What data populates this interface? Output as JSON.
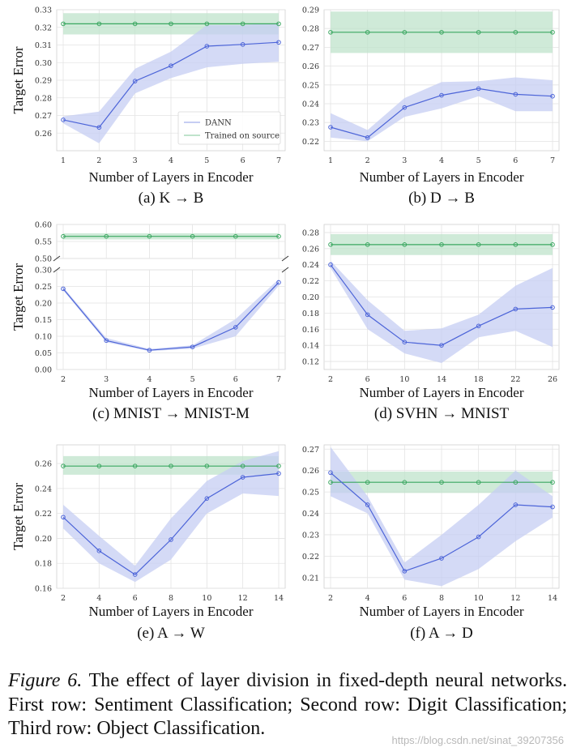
{
  "figure": {
    "caption_label": "Figure 6.",
    "caption_text": "The effect of layer division in fixed-depth neural networks. First row: Sentiment Classification; Second row: Digit Classification; Third row: Object Classification.",
    "watermark": "https://blog.csdn.net/sinat_39207356"
  },
  "colors": {
    "dann": "#4c64d8",
    "source": "#3aa760",
    "dann_band": "#c6cdf3",
    "source_band": "#bfe3cb",
    "grid": "#e3e3e3"
  },
  "chart_data": [
    {
      "type": "line",
      "panel": "a",
      "caption": "(a) K → B",
      "title": "",
      "xlabel": "Number of Layers in Encoder",
      "ylabel": "Target Error",
      "x": [
        1,
        2,
        3,
        4,
        5,
        6,
        7
      ],
      "xticks": [
        "1",
        "2",
        "3",
        "4",
        "5",
        "6",
        "7"
      ],
      "ylim": [
        0.25,
        0.33
      ],
      "yticks": [
        0.26,
        0.27,
        0.28,
        0.29,
        0.3,
        0.31,
        0.32,
        0.33
      ],
      "ytick_labels": [
        "0.26",
        "0.27",
        "0.28",
        "0.29",
        "0.30",
        "0.31",
        "0.32",
        "0.33"
      ],
      "legend": {
        "location": "lower-right",
        "entries": [
          "DANN",
          "Trained on source"
        ]
      },
      "series": [
        {
          "name": "DANN",
          "values": [
            0.2675,
            0.2632,
            0.2895,
            0.2982,
            0.3093,
            0.3103,
            0.3115
          ],
          "lower": [
            0.2655,
            0.2542,
            0.2825,
            0.2912,
            0.2973,
            0.2993,
            0.3005
          ],
          "upper": [
            0.2695,
            0.2722,
            0.2965,
            0.3062,
            0.3213,
            0.3213,
            0.3225
          ]
        },
        {
          "name": "Trained on source",
          "values": [
            0.322,
            0.322,
            0.322,
            0.322,
            0.322,
            0.322,
            0.322
          ],
          "lower": [
            0.316,
            0.316,
            0.316,
            0.316,
            0.316,
            0.316,
            0.316
          ],
          "upper": [
            0.328,
            0.328,
            0.328,
            0.328,
            0.328,
            0.328,
            0.328
          ]
        }
      ]
    },
    {
      "type": "line",
      "panel": "b",
      "caption": "(b) D → B",
      "title": "",
      "xlabel": "Number of Layers in Encoder",
      "ylabel": "",
      "x": [
        1,
        2,
        3,
        4,
        5,
        6,
        7
      ],
      "xticks": [
        "1",
        "2",
        "3",
        "4",
        "5",
        "6",
        "7"
      ],
      "ylim": [
        0.215,
        0.29
      ],
      "yticks": [
        0.22,
        0.23,
        0.24,
        0.25,
        0.26,
        0.27,
        0.28,
        0.29
      ],
      "ytick_labels": [
        "0.22",
        "0.23",
        "0.24",
        "0.25",
        "0.26",
        "0.27",
        "0.28",
        "0.29"
      ],
      "series": [
        {
          "name": "DANN",
          "values": [
            0.2275,
            0.222,
            0.238,
            0.2445,
            0.248,
            0.245,
            0.244
          ],
          "lower": [
            0.222,
            0.22,
            0.233,
            0.2375,
            0.244,
            0.236,
            0.236
          ],
          "upper": [
            0.235,
            0.226,
            0.243,
            0.2515,
            0.252,
            0.254,
            0.2525
          ]
        },
        {
          "name": "Trained on source",
          "values": [
            0.278,
            0.278,
            0.278,
            0.278,
            0.278,
            0.278,
            0.278
          ],
          "lower": [
            0.267,
            0.267,
            0.267,
            0.267,
            0.267,
            0.267,
            0.267
          ],
          "upper": [
            0.289,
            0.289,
            0.289,
            0.289,
            0.289,
            0.289,
            0.289
          ]
        }
      ]
    },
    {
      "type": "line",
      "panel": "c",
      "caption": "(c) MNIST → MNIST-M",
      "title": "",
      "xlabel": "Number of Layers in Encoder",
      "ylabel": "Target Error",
      "x": [
        2,
        3,
        4,
        5,
        6,
        7
      ],
      "xticks": [
        "2",
        "3",
        "4",
        "5",
        "6",
        "7"
      ],
      "broken_axis": true,
      "ylim_top": [
        0.5,
        0.6
      ],
      "ylim": [
        0.0,
        0.3
      ],
      "yticks_top": [
        0.5,
        0.55,
        0.6
      ],
      "ytick_labels_top": [
        "0.50",
        "0.55",
        "0.60"
      ],
      "yticks": [
        0.0,
        0.05,
        0.1,
        0.15,
        0.2,
        0.25,
        0.3
      ],
      "ytick_labels": [
        "0.00",
        "0.05",
        "0.10",
        "0.15",
        "0.20",
        "0.25",
        "0.30"
      ],
      "series": [
        {
          "name": "DANN",
          "values": [
            0.243,
            0.087,
            0.058,
            0.068,
            0.127,
            0.262
          ],
          "lower": [
            0.238,
            0.082,
            0.055,
            0.063,
            0.1,
            0.252
          ],
          "upper": [
            0.248,
            0.095,
            0.062,
            0.073,
            0.152,
            0.272
          ]
        },
        {
          "name": "Trained on source",
          "values": [
            0.565,
            0.565,
            0.565,
            0.565,
            0.565,
            0.565
          ],
          "lower": [
            0.556,
            0.556,
            0.556,
            0.556,
            0.556,
            0.556
          ],
          "upper": [
            0.574,
            0.574,
            0.574,
            0.574,
            0.574,
            0.574
          ]
        }
      ]
    },
    {
      "type": "line",
      "panel": "d",
      "caption": "(d) SVHN → MNIST",
      "title": "",
      "xlabel": "Number of Layers in Encoder",
      "ylabel": "",
      "x": [
        2,
        6,
        10,
        14,
        18,
        22,
        26
      ],
      "xticks": [
        "2",
        "6",
        "10",
        "14",
        "18",
        "22",
        "26"
      ],
      "ylim": [
        0.11,
        0.29
      ],
      "yticks": [
        0.12,
        0.14,
        0.16,
        0.18,
        0.2,
        0.22,
        0.24,
        0.26,
        0.28
      ],
      "ytick_labels": [
        "0.12",
        "0.14",
        "0.16",
        "0.18",
        "0.20",
        "0.22",
        "0.24",
        "0.26",
        "0.28"
      ],
      "series": [
        {
          "name": "DANN",
          "values": [
            0.24,
            0.178,
            0.144,
            0.14,
            0.164,
            0.185,
            0.187
          ],
          "lower": [
            0.236,
            0.16,
            0.13,
            0.118,
            0.15,
            0.158,
            0.138
          ],
          "upper": [
            0.245,
            0.196,
            0.158,
            0.161,
            0.178,
            0.214,
            0.236
          ]
        },
        {
          "name": "Trained on source",
          "values": [
            0.265,
            0.265,
            0.265,
            0.265,
            0.265,
            0.265,
            0.265
          ],
          "lower": [
            0.252,
            0.252,
            0.252,
            0.252,
            0.252,
            0.252,
            0.252
          ],
          "upper": [
            0.278,
            0.278,
            0.278,
            0.278,
            0.278,
            0.278,
            0.278
          ]
        }
      ]
    },
    {
      "type": "line",
      "panel": "e",
      "caption": "(e) A → W",
      "title": "",
      "xlabel": "Number of Layers in Encoder",
      "ylabel": "Target Error",
      "x": [
        2,
        4,
        6,
        8,
        10,
        12,
        14
      ],
      "xticks": [
        "2",
        "4",
        "6",
        "8",
        "10",
        "12",
        "14"
      ],
      "ylim": [
        0.16,
        0.275
      ],
      "yticks": [
        0.16,
        0.18,
        0.2,
        0.22,
        0.24,
        0.26
      ],
      "ytick_labels": [
        "0.16",
        "0.18",
        "0.20",
        "0.22",
        "0.24",
        "0.26"
      ],
      "series": [
        {
          "name": "DANN",
          "values": [
            0.217,
            0.19,
            0.171,
            0.199,
            0.232,
            0.249,
            0.252
          ],
          "lower": [
            0.208,
            0.18,
            0.165,
            0.183,
            0.22,
            0.236,
            0.234
          ],
          "upper": [
            0.227,
            0.202,
            0.178,
            0.216,
            0.246,
            0.262,
            0.27
          ]
        },
        {
          "name": "Trained on source",
          "values": [
            0.258,
            0.258,
            0.258,
            0.258,
            0.258,
            0.258,
            0.258
          ],
          "lower": [
            0.251,
            0.251,
            0.251,
            0.251,
            0.251,
            0.251,
            0.251
          ],
          "upper": [
            0.266,
            0.266,
            0.266,
            0.266,
            0.266,
            0.266,
            0.266
          ]
        }
      ]
    },
    {
      "type": "line",
      "panel": "f",
      "caption": "(f) A → D",
      "title": "",
      "xlabel": "Number of Layers in Encoder",
      "ylabel": "",
      "x": [
        2,
        4,
        6,
        8,
        10,
        12,
        14
      ],
      "xticks": [
        "2",
        "4",
        "6",
        "8",
        "10",
        "12",
        "14"
      ],
      "ylim": [
        0.205,
        0.272
      ],
      "yticks": [
        0.21,
        0.22,
        0.23,
        0.24,
        0.25,
        0.26,
        0.27
      ],
      "ytick_labels": [
        "0.21",
        "0.22",
        "0.23",
        "0.24",
        "0.25",
        "0.26",
        "0.27"
      ],
      "series": [
        {
          "name": "DANN",
          "values": [
            0.259,
            0.244,
            0.213,
            0.219,
            0.229,
            0.244,
            0.243
          ],
          "lower": [
            0.248,
            0.24,
            0.209,
            0.206,
            0.214,
            0.227,
            0.238
          ],
          "upper": [
            0.271,
            0.248,
            0.217,
            0.23,
            0.244,
            0.26,
            0.248
          ]
        },
        {
          "name": "Trained on source",
          "values": [
            0.2545,
            0.2545,
            0.2545,
            0.2545,
            0.2545,
            0.2545,
            0.2545
          ],
          "lower": [
            0.2495,
            0.2495,
            0.2495,
            0.2495,
            0.2495,
            0.2495,
            0.2495
          ],
          "upper": [
            0.2595,
            0.2595,
            0.2595,
            0.2595,
            0.2595,
            0.2595,
            0.2595
          ]
        }
      ]
    }
  ]
}
